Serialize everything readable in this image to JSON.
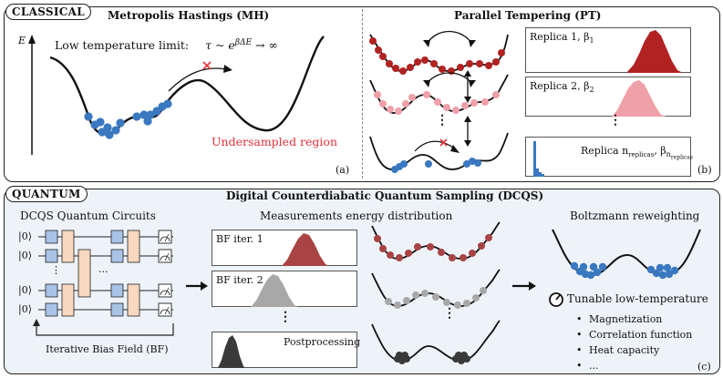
{
  "classical": {
    "tag": "CLASSICAL",
    "mh": {
      "title": "Metropolis Hastings (MH)",
      "axis_label": "E",
      "low_temp_text": "Low temperature limit:",
      "low_temp_formula": "τ ~ e",
      "low_temp_exp": "βΔE",
      "low_temp_tail": "→ ∞",
      "undersampled": "Undersampled region",
      "panel_label": "(a)"
    },
    "pt": {
      "title": "Parallel Tempering (PT)",
      "replica1": "Replica 1, β",
      "replica1_sub": "1",
      "replica2": "Replica 2, β",
      "replica2_sub": "2",
      "replican": "Replica n",
      "replican_sub": "replicas",
      "replican_beta": ", β",
      "replican_beta_sub": "n",
      "replican_beta_subsub": "replicas",
      "dots": "⋮",
      "panel_label": "(b)"
    }
  },
  "quantum": {
    "tag": "QUANTUM",
    "title": "Digital Counterdiabatic Quantum Sampling (DCQS)",
    "circuits": {
      "heading": "DCQS Quantum Circuits",
      "kets": [
        "|0⟩",
        "|0⟩",
        "|0⟩",
        "|0⟩"
      ],
      "ellipsis_mid": "...",
      "ellipsis_v": "⋮",
      "feedback": "Iterative Bias Field (BF)"
    },
    "measurements": {
      "heading": "Measurements energy distribution",
      "bf1": "BF iter. 1",
      "bf2": "BF iter. 2",
      "post": "Postprocessing",
      "dots": "⋮"
    },
    "reweighting": {
      "heading": "Boltzmann reweighting",
      "tunable": "Tunable low-temperature",
      "items": [
        "Magnetization",
        "Correlation function",
        "Heat capacity",
        "..."
      ]
    },
    "panel_label": "(c)"
  },
  "colors": {
    "blue": "#3a78c0",
    "dark_red": "#b22222",
    "pink": "#f0a0a8",
    "gray": "#a8a8a8",
    "dark_gray": "#3a3a3a",
    "quantum_bg": "#eef3fa",
    "gate_blue": "#a9c3e6",
    "gate_peach": "#f8d8c0",
    "red_text": "#e8303a"
  }
}
